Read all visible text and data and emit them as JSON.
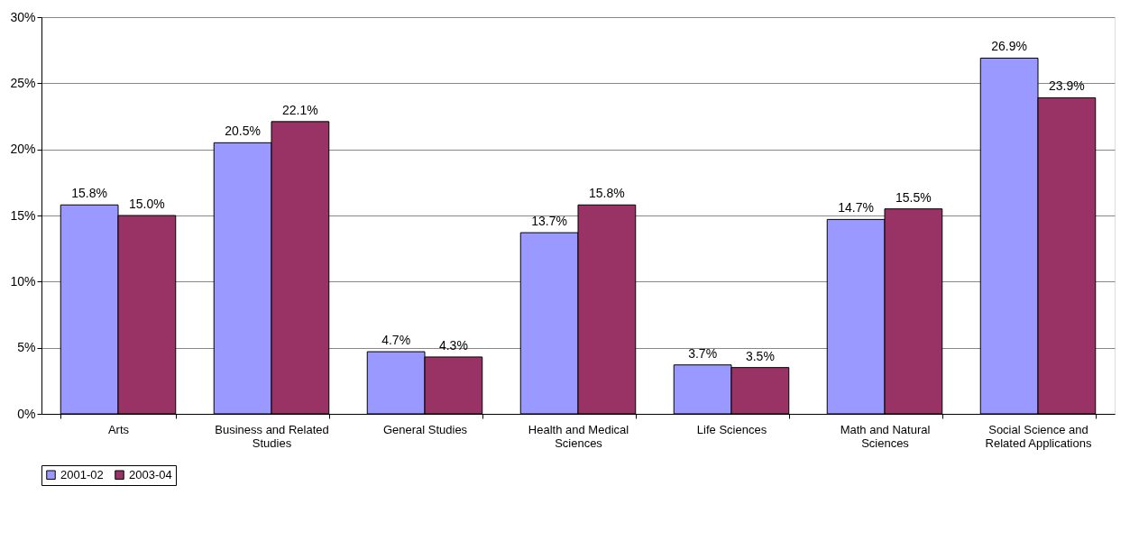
{
  "chart_data": {
    "type": "bar",
    "categories": [
      "Arts",
      "Business and Related Studies",
      "General Studies",
      "Health and Medical Sciences",
      "Life Sciences",
      "Math and Natural Sciences",
      "Social Science and Related Applications"
    ],
    "series": [
      {
        "name": "2001-02",
        "color": "#9999ff",
        "values": [
          15.8,
          20.5,
          4.7,
          13.7,
          3.7,
          14.7,
          26.9
        ],
        "value_labels": [
          "15.8%",
          "20.5%",
          "4.7%",
          "13.7%",
          "3.7%",
          "14.7%",
          "26.9%"
        ]
      },
      {
        "name": "2003-04",
        "color": "#993366",
        "values": [
          15.0,
          22.1,
          4.3,
          15.8,
          3.5,
          15.5,
          23.9
        ],
        "value_labels": [
          "15.0%",
          "22.1%",
          "4.3%",
          "15.8%",
          "3.5%",
          "15.5%",
          "23.9%"
        ]
      }
    ],
    "ylim": [
      0,
      30
    ],
    "yticks": [
      {
        "value": 0,
        "label": "0%"
      },
      {
        "value": 5,
        "label": "5%"
      },
      {
        "value": 10,
        "label": "10%"
      },
      {
        "value": 15,
        "label": "15%"
      },
      {
        "value": 20,
        "label": "20%"
      },
      {
        "value": 25,
        "label": "25%"
      },
      {
        "value": 30,
        "label": "30%"
      }
    ],
    "grid": "y",
    "legend": "bottom"
  }
}
